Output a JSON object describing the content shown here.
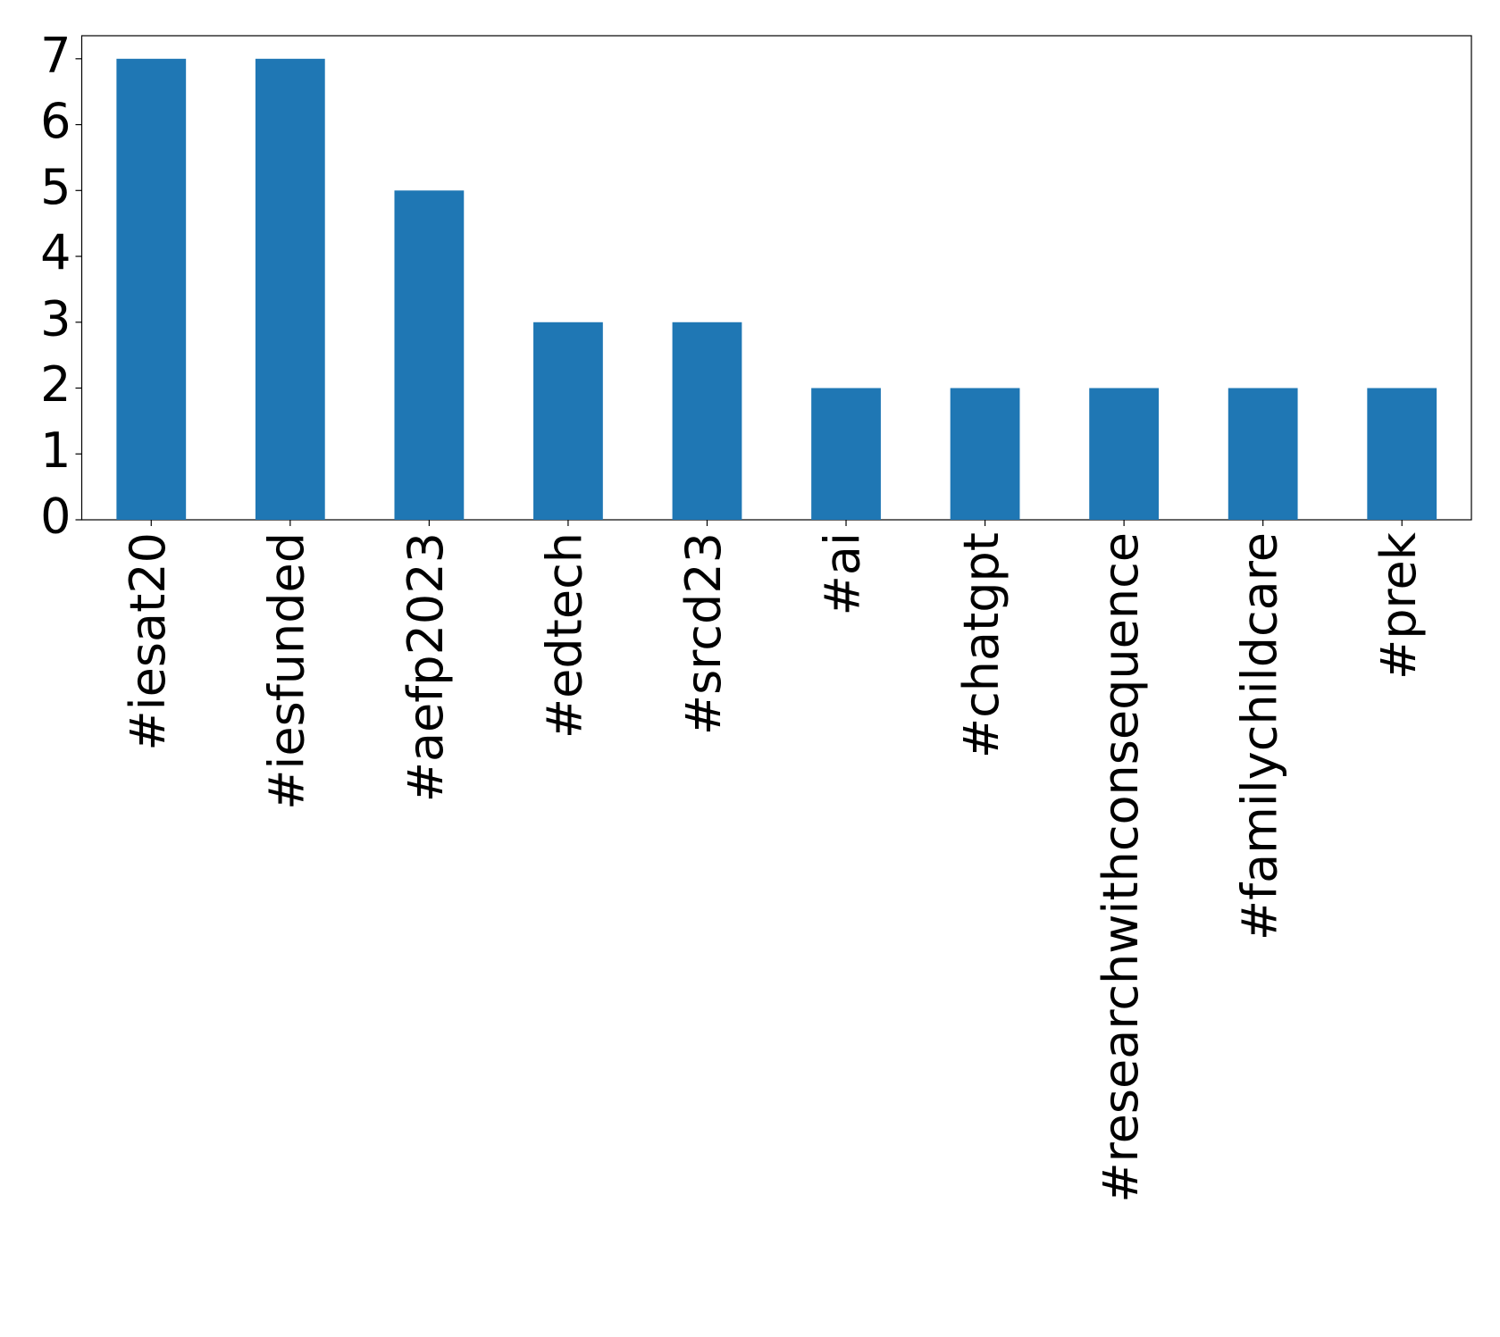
{
  "chart_data": {
    "type": "bar",
    "categories": [
      "#iesat20",
      "#iesfunded",
      "#aefp2023",
      "#edtech",
      "#srcd23",
      "#ai",
      "#chatgpt",
      "#researchwithconsequence",
      "#familychildcare",
      "#prek"
    ],
    "values": [
      7,
      7,
      5,
      3,
      3,
      2,
      2,
      2,
      2,
      2
    ],
    "color": "#1f77b4",
    "ylim": [
      0,
      7.35
    ],
    "yticks": [
      0,
      1,
      2,
      3,
      4,
      5,
      6,
      7
    ],
    "grid": false
  }
}
